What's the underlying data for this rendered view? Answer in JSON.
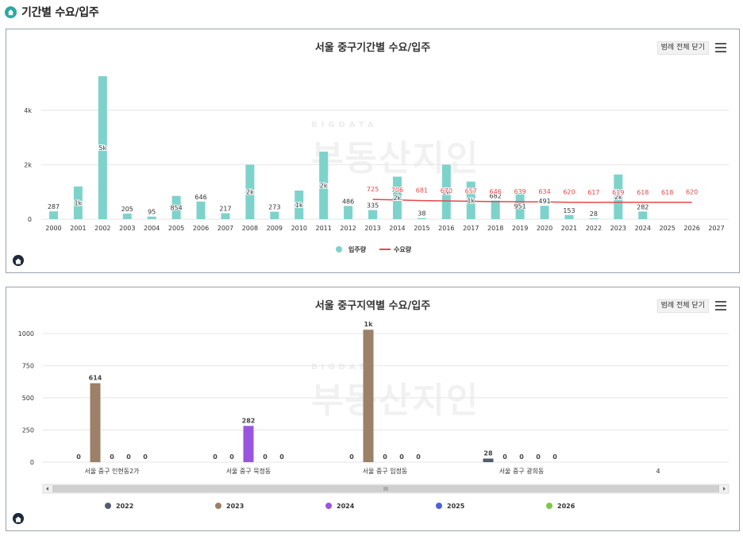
{
  "header": {
    "title": "기간별 수요/입주"
  },
  "watermark": {
    "top": "BIGDATA",
    "main": "부동산지인"
  },
  "panels": {
    "top": {
      "legend_close_label": "범례 전체 닫기"
    },
    "bottom": {
      "legend_close_label": "범례 전체 닫기"
    }
  },
  "chart_data": [
    {
      "type": "bar",
      "title": "서울 중구기간별 수요/입주",
      "categories": [
        "2000",
        "2001",
        "2002",
        "2003",
        "2004",
        "2005",
        "2006",
        "2007",
        "2008",
        "2009",
        "2010",
        "2011",
        "2012",
        "2013",
        "2014",
        "2015",
        "2016",
        "2017",
        "2018",
        "2019",
        "2020",
        "2021",
        "2022",
        "2023",
        "2024",
        "2025",
        "2026",
        "2027"
      ],
      "ylim": [
        0,
        5800
      ],
      "yticks": [
        0,
        2000,
        4000
      ],
      "ytick_labels": [
        "0",
        "2k",
        "4k"
      ],
      "grid": true,
      "legend_position": "bottom",
      "series": [
        {
          "name": "입주량",
          "type": "bar",
          "color": "#7dd3cc",
          "values": [
            287,
            1200,
            5250,
            205,
            95,
            854,
            646,
            217,
            2000,
            273,
            1050,
            2480,
            486,
            335,
            1560,
            38,
            2000,
            1380,
            682,
            951,
            491,
            153,
            28,
            1640,
            282,
            null,
            null,
            null
          ],
          "labels": [
            "287",
            "1k",
            "5k",
            "205",
            "95",
            "854",
            "646",
            "217",
            "2k",
            "273",
            "1k",
            "2k",
            "486",
            "335",
            "2k",
            "38",
            "2k",
            "1k",
            "682",
            "951",
            "491",
            "153",
            "28",
            "2k",
            "282",
            "",
            "",
            ""
          ]
        },
        {
          "name": "수요량",
          "type": "line",
          "color": "#e8474a",
          "values": [
            null,
            null,
            null,
            null,
            null,
            null,
            null,
            null,
            null,
            null,
            null,
            null,
            null,
            725,
            706,
            681,
            670,
            657,
            646,
            639,
            634,
            620,
            617,
            619,
            618,
            618,
            620,
            null
          ],
          "labels": [
            "",
            "",
            "",
            "",
            "",
            "",
            "",
            "",
            "",
            "",
            "",
            "",
            "",
            "725",
            "706",
            "681",
            "670",
            "657",
            "646",
            "639",
            "634",
            "620",
            "617",
            "619",
            "618",
            "618",
            "620",
            ""
          ]
        }
      ]
    },
    {
      "type": "bar",
      "title": "서울 중구지역별 수요/입주",
      "categories": [
        "서울 중구 인현동2가",
        "서울 중구 묵정동",
        "서울 중구 입정동",
        "서울 중구 광희동"
      ],
      "extra_tick_label": "4",
      "ylim": [
        0,
        1050
      ],
      "yticks": [
        0,
        250,
        500,
        750,
        1000
      ],
      "ytick_labels": [
        "0",
        "250",
        "500",
        "750",
        "1000"
      ],
      "grid": true,
      "legend_position": "bottom",
      "series": [
        {
          "name": "2022",
          "color": "#545c70",
          "values": [
            0,
            0,
            0,
            28
          ],
          "labels": [
            "0",
            "0",
            "0",
            "28"
          ]
        },
        {
          "name": "2023",
          "color": "#9c8068",
          "values": [
            614,
            0,
            1030,
            0
          ],
          "labels": [
            "614",
            "0",
            "1k",
            "0"
          ]
        },
        {
          "name": "2024",
          "color": "#9a55e0",
          "values": [
            0,
            282,
            0,
            0
          ],
          "labels": [
            "0",
            "282",
            "0",
            "0"
          ]
        },
        {
          "name": "2025",
          "color": "#5060d8",
          "values": [
            0,
            0,
            0,
            0
          ],
          "labels": [
            "0",
            "0",
            "0",
            "0"
          ]
        },
        {
          "name": "2026",
          "color": "#7ec84a",
          "values": [
            0,
            0,
            0,
            0
          ],
          "labels": [
            "0",
            "0",
            "0",
            "0"
          ]
        }
      ]
    }
  ]
}
